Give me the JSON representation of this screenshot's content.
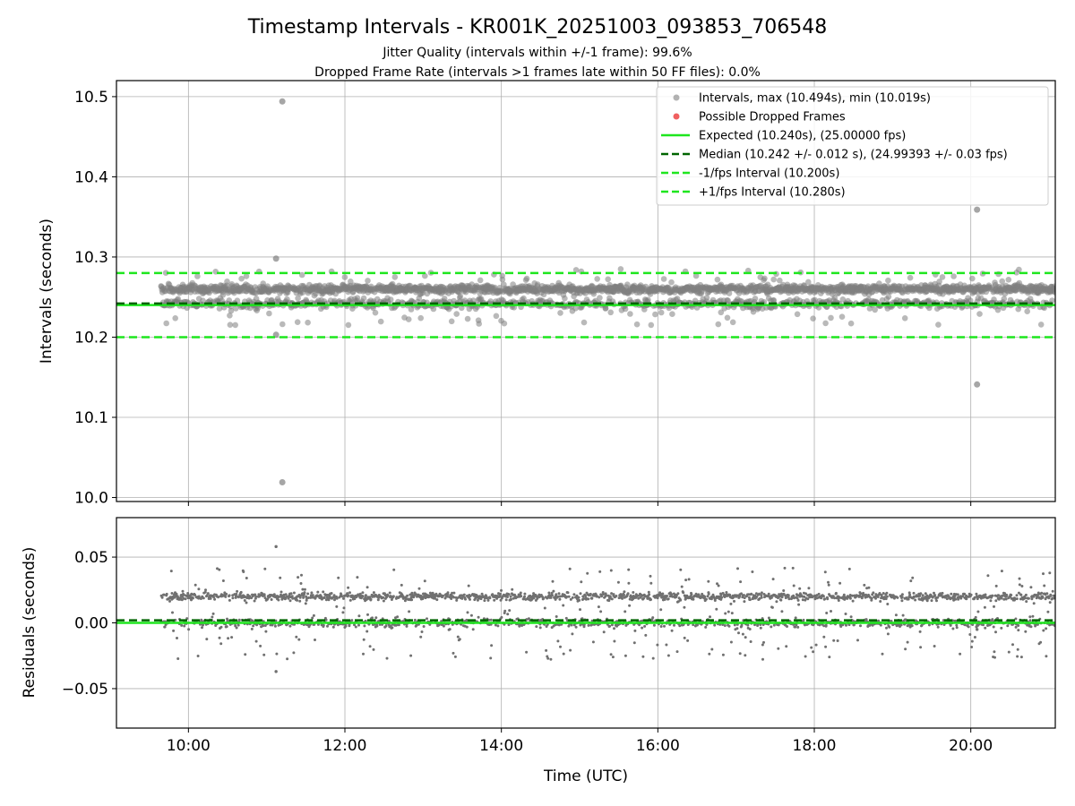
{
  "chart_data": [
    {
      "id": "intervals",
      "type": "scatter",
      "title": "Timestamp Intervals - KR001K_20251003_093853_706548",
      "subtitle_lines": [
        "Jitter Quality (intervals within +/-1 frame): 99.6%",
        "Dropped Frame Rate (intervals >1 frames late within 50 FF files): 0.0%"
      ],
      "xlabel": "",
      "ylabel": "Intervals (seconds)",
      "xlim_hours": [
        9.08,
        21.08
      ],
      "ylim": [
        9.995,
        10.52
      ],
      "yticks": [
        10.0,
        10.1,
        10.2,
        10.3,
        10.4,
        10.5
      ],
      "ytick_labels": [
        "10.0",
        "10.1",
        "10.2",
        "10.3",
        "10.4",
        "10.5"
      ],
      "grid": true,
      "legend_position": "top-right",
      "series": [
        {
          "name": "Intervals, max (10.494s), min (10.019s)",
          "kind": "points",
          "color": "#808080"
        },
        {
          "name": "Possible Dropped Frames",
          "kind": "points",
          "color": "#f06060"
        },
        {
          "name": "Expected (10.240s), (25.00000 fps)",
          "kind": "hline",
          "value": 10.24,
          "color": "#1ee61e",
          "dash": "solid"
        },
        {
          "name": "Median (10.242 +/- 0.012 s), (24.99393 +/- 0.03 fps)",
          "kind": "hline",
          "value": 10.242,
          "color": "#006400",
          "dash": "dashed"
        },
        {
          "name": "-1/fps Interval (10.200s)",
          "kind": "hline",
          "value": 10.2,
          "color": "#1ee61e",
          "dash": "dashed"
        },
        {
          "name": "+1/fps Interval (10.280s)",
          "kind": "hline",
          "value": 10.28,
          "color": "#1ee61e",
          "dash": "dashed"
        }
      ],
      "data_range_hours": [
        9.65,
        21.08
      ],
      "main_bands": [
        10.242,
        10.26
      ],
      "band_spread": 0.005,
      "outliers": [
        {
          "x": 11.2,
          "y": 10.494
        },
        {
          "x": 11.2,
          "y": 10.019
        },
        {
          "x": 11.12,
          "y": 10.298
        },
        {
          "x": 11.12,
          "y": 10.203
        },
        {
          "x": 20.08,
          "y": 10.359
        },
        {
          "x": 20.08,
          "y": 10.141
        }
      ]
    },
    {
      "id": "residuals",
      "type": "scatter",
      "xlabel": "Time (UTC)",
      "ylabel": "Residuals (seconds)",
      "xlim_hours": [
        9.08,
        21.08
      ],
      "ylim": [
        -0.08,
        0.08
      ],
      "yticks": [
        -0.05,
        0.0,
        0.05
      ],
      "ytick_labels": [
        "−0.05",
        "0.00",
        "0.05"
      ],
      "xticks_hours": [
        10,
        12,
        14,
        16,
        18,
        20
      ],
      "xtick_labels": [
        "10:00",
        "12:00",
        "14:00",
        "16:00",
        "18:00",
        "20:00"
      ],
      "grid": true,
      "series": [
        {
          "name": "Residuals",
          "kind": "points",
          "color": "#808080"
        },
        {
          "name": "Expected",
          "kind": "hline",
          "value": 0.0,
          "color": "#1ee61e",
          "dash": "solid"
        },
        {
          "name": "Median",
          "kind": "hline",
          "value": 0.002,
          "color": "#006400",
          "dash": "dashed"
        }
      ],
      "main_bands": [
        0.0,
        0.02
      ],
      "outliers": [
        {
          "x": 11.12,
          "y": 0.058
        },
        {
          "x": 11.12,
          "y": -0.037
        },
        {
          "x": 20.08,
          "y": 0.02
        },
        {
          "x": 20.08,
          "y": -0.005
        }
      ]
    }
  ]
}
